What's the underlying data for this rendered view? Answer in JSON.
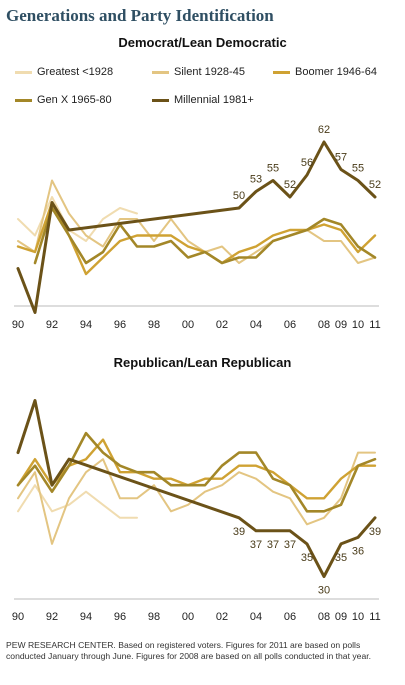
{
  "title": "Generations and Party Identification",
  "footer": "PEW RESEARCH CENTER. Based on registered voters. Figures for 2011 are based on polls conducted January through June. Figures for 2008 are based on all polls conducted in that year.",
  "colors": {
    "Greatest <1928": "#f0dcb0",
    "Silent 1928-45": "#e3c582",
    "Boomer 1946-64": "#cfa233",
    "Gen X 1965-80": "#a38728",
    "Millennial 1981+": "#6b5218"
  },
  "chart_data": [
    {
      "type": "line",
      "title": "Democrat/Lean Democratic",
      "x_ticks": [
        "90",
        "92",
        "94",
        "96",
        "98",
        "00",
        "02",
        "04",
        "06",
        "08",
        "09",
        "10",
        "11"
      ],
      "x_tick_years": [
        1990,
        1992,
        1994,
        1996,
        1998,
        2000,
        2002,
        2004,
        2006,
        2008,
        2009,
        2010,
        2011
      ],
      "xlim": [
        1990,
        2011
      ],
      "ylim": [
        30,
        66
      ],
      "series": [
        {
          "name": "Greatest <1928",
          "x": [
            1990,
            1991,
            1992,
            1993,
            1994,
            1995,
            1996,
            1997
          ],
          "y": [
            48,
            45,
            52,
            46,
            44,
            48,
            50,
            49
          ]
        },
        {
          "name": "Silent 1928-45",
          "x": [
            1990,
            1991,
            1992,
            1993,
            1994,
            1995,
            1996,
            1997,
            1998,
            1999,
            2000,
            2001,
            2002,
            2003,
            2004,
            2005,
            2006,
            2007,
            2008,
            2009,
            2010,
            2011
          ],
          "y": [
            44,
            42,
            55,
            49,
            45,
            43,
            48,
            48,
            44,
            48,
            44,
            42,
            43,
            40,
            42,
            44,
            45,
            46,
            44,
            44,
            40,
            41
          ]
        },
        {
          "name": "Boomer 1946-64",
          "x": [
            1990,
            1991,
            1992,
            1993,
            1994,
            1995,
            1996,
            1997,
            1998,
            1999,
            2000,
            2001,
            2002,
            2003,
            2004,
            2005,
            2006,
            2007,
            2008,
            2009,
            2010,
            2011
          ],
          "y": [
            43,
            42,
            51,
            45,
            38,
            41,
            44,
            45,
            45,
            45,
            43,
            42,
            40,
            42,
            43,
            45,
            46,
            46,
            47,
            46,
            42,
            45
          ]
        },
        {
          "name": "Gen X 1965-80",
          "x": [
            1991,
            1992,
            1993,
            1994,
            1995,
            1996,
            1997,
            1998,
            1999,
            2000,
            2001,
            2002,
            2003,
            2004,
            2005,
            2006,
            2007,
            2008,
            2009,
            2010,
            2011
          ],
          "y": [
            40,
            50,
            45,
            40,
            42,
            47,
            43,
            43,
            44,
            41,
            42,
            40,
            41,
            41,
            44,
            45,
            46,
            48,
            47,
            43,
            41
          ]
        },
        {
          "name": "Millennial 1981+",
          "x": [
            1990,
            1991,
            1992,
            1993,
            2003,
            2004,
            2005,
            2006,
            2007,
            2008,
            2009,
            2010,
            2011
          ],
          "y": [
            39,
            31,
            51,
            46,
            50,
            53,
            55,
            52,
            56,
            62,
            57,
            55,
            52
          ]
        }
      ],
      "data_labels": [
        {
          "year": 2003,
          "value": 50
        },
        {
          "year": 2004,
          "value": 53
        },
        {
          "year": 2005,
          "value": 55
        },
        {
          "year": 2006,
          "value": 52
        },
        {
          "year": 2007,
          "value": 56
        },
        {
          "year": 2008,
          "value": 62
        },
        {
          "year": 2009,
          "value": 57
        },
        {
          "year": 2010,
          "value": 55
        },
        {
          "year": 2011,
          "value": 52
        }
      ]
    },
    {
      "type": "line",
      "title": "Republican/Lean Republican",
      "x_ticks": [
        "90",
        "92",
        "94",
        "96",
        "98",
        "00",
        "02",
        "04",
        "06",
        "08",
        "09",
        "10",
        "11"
      ],
      "x_tick_years": [
        1990,
        1992,
        1994,
        1996,
        1998,
        2000,
        2002,
        2004,
        2006,
        2008,
        2009,
        2010,
        2011
      ],
      "xlim": [
        1990,
        2011
      ],
      "ylim": [
        27,
        58
      ],
      "series": [
        {
          "name": "Greatest <1928",
          "x": [
            1990,
            1991,
            1992,
            1993,
            1994,
            1995,
            1996,
            1997
          ],
          "y": [
            40,
            44,
            40,
            41,
            43,
            41,
            39,
            39
          ]
        },
        {
          "name": "Silent 1928-45",
          "x": [
            1990,
            1991,
            1992,
            1993,
            1994,
            1995,
            1996,
            1997,
            1998,
            1999,
            2000,
            2001,
            2002,
            2003,
            2004,
            2005,
            2006,
            2007,
            2008,
            2009,
            2010,
            2011
          ],
          "y": [
            42,
            46,
            35,
            42,
            46,
            48,
            42,
            42,
            44,
            40,
            41,
            43,
            44,
            46,
            45,
            43,
            42,
            38,
            39,
            42,
            49,
            49
          ]
        },
        {
          "name": "Boomer 1946-64",
          "x": [
            1990,
            1991,
            1992,
            1993,
            1994,
            1995,
            1996,
            1997,
            1998,
            1999,
            2000,
            2001,
            2002,
            2003,
            2004,
            2005,
            2006,
            2007,
            2008,
            2009,
            2010,
            2011
          ],
          "y": [
            44,
            48,
            44,
            47,
            48,
            51,
            46,
            46,
            45,
            45,
            44,
            45,
            45,
            47,
            47,
            46,
            44,
            42,
            42,
            45,
            47,
            47
          ]
        },
        {
          "name": "Gen X 1965-80",
          "x": [
            1990,
            1991,
            1992,
            1993,
            1994,
            1995,
            1996,
            1997,
            1998,
            1999,
            2000,
            2001,
            2002,
            2003,
            2004,
            2005,
            2006,
            2007,
            2008,
            2009,
            2010,
            2011
          ],
          "y": [
            44,
            47,
            43,
            47,
            52,
            49,
            47,
            46,
            46,
            44,
            44,
            44,
            47,
            49,
            49,
            45,
            44,
            40,
            40,
            41,
            47,
            48
          ]
        },
        {
          "name": "Millennial 1981+",
          "x": [
            1990,
            1991,
            1992,
            1993,
            2003,
            2004,
            2005,
            2006,
            2007,
            2008,
            2009,
            2010,
            2011
          ],
          "y": [
            49,
            57,
            44,
            48,
            39,
            37,
            37,
            37,
            35,
            30,
            35,
            36,
            39
          ]
        }
      ],
      "data_labels": [
        {
          "year": 2003,
          "value": 39
        },
        {
          "year": 2004,
          "value": 37
        },
        {
          "year": 2005,
          "value": 37
        },
        {
          "year": 2006,
          "value": 37
        },
        {
          "year": 2007,
          "value": 35
        },
        {
          "year": 2008,
          "value": 30
        },
        {
          "year": 2009,
          "value": 35
        },
        {
          "year": 2010,
          "value": 36
        },
        {
          "year": 2011,
          "value": 39
        }
      ]
    }
  ]
}
